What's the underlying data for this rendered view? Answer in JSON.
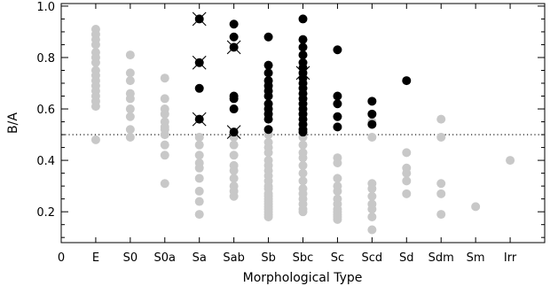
{
  "chart_data": {
    "type": "scatter",
    "title": "",
    "xlabel": "Morphological Type",
    "ylabel": "B/A",
    "categories": [
      "0",
      "E",
      "S0",
      "S0a",
      "Sa",
      "Sab",
      "Sb",
      "Sbc",
      "Sc",
      "Scd",
      "Sd",
      "Sdm",
      "Sm",
      "Irr"
    ],
    "xlim": [
      0,
      14
    ],
    "ylim": [
      0.08,
      1.01
    ],
    "yticks": [
      "0.2",
      "0.4",
      "0.6",
      "0.8",
      "1.0"
    ],
    "ytick_values": [
      0.2,
      0.4,
      0.6,
      0.8,
      1.0
    ],
    "reference_line": {
      "y": 0.5,
      "style": "dotted"
    },
    "colors": {
      "gray": "#c8c8c8",
      "black": "#000000"
    },
    "series": [
      {
        "color": "gray",
        "points": [
          [
            1,
            0.91
          ],
          [
            1,
            0.89
          ],
          [
            1,
            0.87
          ],
          [
            1,
            0.85
          ],
          [
            1,
            0.82
          ],
          [
            1,
            0.8
          ],
          [
            1,
            0.78
          ],
          [
            1,
            0.75
          ],
          [
            1,
            0.73
          ],
          [
            1,
            0.71
          ],
          [
            1,
            0.69
          ],
          [
            1,
            0.67
          ],
          [
            1,
            0.65
          ],
          [
            1,
            0.63
          ],
          [
            1,
            0.61
          ],
          [
            1,
            0.48
          ],
          [
            2,
            0.81
          ],
          [
            2,
            0.74
          ],
          [
            2,
            0.71
          ],
          [
            2,
            0.66
          ],
          [
            2,
            0.64
          ],
          [
            2,
            0.6
          ],
          [
            2,
            0.57
          ],
          [
            2,
            0.52
          ],
          [
            2,
            0.49
          ],
          [
            3,
            0.72
          ],
          [
            3,
            0.64
          ],
          [
            3,
            0.6
          ],
          [
            3,
            0.58
          ],
          [
            3,
            0.55
          ],
          [
            3,
            0.53
          ],
          [
            3,
            0.52
          ],
          [
            3,
            0.5
          ],
          [
            3,
            0.46
          ],
          [
            3,
            0.42
          ],
          [
            3,
            0.31
          ],
          [
            4,
            0.49
          ],
          [
            4,
            0.46
          ],
          [
            4,
            0.42
          ],
          [
            4,
            0.39
          ],
          [
            4,
            0.37
          ],
          [
            4,
            0.33
          ],
          [
            4,
            0.28
          ],
          [
            4,
            0.24
          ],
          [
            4,
            0.19
          ],
          [
            5,
            0.49
          ],
          [
            5,
            0.46
          ],
          [
            5,
            0.42
          ],
          [
            5,
            0.38
          ],
          [
            5,
            0.36
          ],
          [
            5,
            0.33
          ],
          [
            5,
            0.3
          ],
          [
            5,
            0.28
          ],
          [
            5,
            0.26
          ],
          [
            6,
            0.5
          ],
          [
            6,
            0.47
          ],
          [
            6,
            0.45
          ],
          [
            6,
            0.43
          ],
          [
            6,
            0.4
          ],
          [
            6,
            0.38
          ],
          [
            6,
            0.36
          ],
          [
            6,
            0.34
          ],
          [
            6,
            0.32
          ],
          [
            6,
            0.3
          ],
          [
            6,
            0.29
          ],
          [
            6,
            0.27
          ],
          [
            6,
            0.26
          ],
          [
            6,
            0.25
          ],
          [
            6,
            0.24
          ],
          [
            6,
            0.23
          ],
          [
            6,
            0.22
          ],
          [
            6,
            0.21
          ],
          [
            6,
            0.2
          ],
          [
            6,
            0.19
          ],
          [
            6,
            0.18
          ],
          [
            7,
            0.49
          ],
          [
            7,
            0.46
          ],
          [
            7,
            0.43
          ],
          [
            7,
            0.41
          ],
          [
            7,
            0.38
          ],
          [
            7,
            0.35
          ],
          [
            7,
            0.32
          ],
          [
            7,
            0.29
          ],
          [
            7,
            0.27
          ],
          [
            7,
            0.25
          ],
          [
            7,
            0.23
          ],
          [
            7,
            0.21
          ],
          [
            7,
            0.2
          ],
          [
            8,
            0.41
          ],
          [
            8,
            0.39
          ],
          [
            8,
            0.33
          ],
          [
            8,
            0.3
          ],
          [
            8,
            0.28
          ],
          [
            8,
            0.25
          ],
          [
            8,
            0.23
          ],
          [
            8,
            0.21
          ],
          [
            8,
            0.2
          ],
          [
            8,
            0.19
          ],
          [
            8,
            0.18
          ],
          [
            8,
            0.17
          ],
          [
            9,
            0.55
          ],
          [
            9,
            0.49
          ],
          [
            9,
            0.31
          ],
          [
            9,
            0.29
          ],
          [
            9,
            0.26
          ],
          [
            9,
            0.23
          ],
          [
            9,
            0.21
          ],
          [
            9,
            0.18
          ],
          [
            9,
            0.13
          ],
          [
            10,
            0.43
          ],
          [
            10,
            0.37
          ],
          [
            10,
            0.35
          ],
          [
            10,
            0.32
          ],
          [
            10,
            0.27
          ],
          [
            11,
            0.56
          ],
          [
            11,
            0.49
          ],
          [
            11,
            0.31
          ],
          [
            11,
            0.27
          ],
          [
            11,
            0.19
          ],
          [
            12,
            0.22
          ],
          [
            13,
            0.4
          ]
        ]
      },
      {
        "color": "black",
        "points": [
          [
            4,
            0.95
          ],
          [
            4,
            0.78
          ],
          [
            4,
            0.68
          ],
          [
            4,
            0.56
          ],
          [
            5,
            0.93
          ],
          [
            5,
            0.88
          ],
          [
            5,
            0.84
          ],
          [
            5,
            0.65
          ],
          [
            5,
            0.64
          ],
          [
            5,
            0.6
          ],
          [
            5,
            0.51
          ],
          [
            6,
            0.88
          ],
          [
            6,
            0.77
          ],
          [
            6,
            0.74
          ],
          [
            6,
            0.71
          ],
          [
            6,
            0.69
          ],
          [
            6,
            0.67
          ],
          [
            6,
            0.65
          ],
          [
            6,
            0.62
          ],
          [
            6,
            0.6
          ],
          [
            6,
            0.58
          ],
          [
            6,
            0.56
          ],
          [
            6,
            0.52
          ],
          [
            7,
            0.95
          ],
          [
            7,
            0.87
          ],
          [
            7,
            0.84
          ],
          [
            7,
            0.81
          ],
          [
            7,
            0.78
          ],
          [
            7,
            0.76
          ],
          [
            7,
            0.74
          ],
          [
            7,
            0.72
          ],
          [
            7,
            0.7
          ],
          [
            7,
            0.68
          ],
          [
            7,
            0.66
          ],
          [
            7,
            0.64
          ],
          [
            7,
            0.62
          ],
          [
            7,
            0.6
          ],
          [
            7,
            0.58
          ],
          [
            7,
            0.56
          ],
          [
            7,
            0.54
          ],
          [
            7,
            0.52
          ],
          [
            7,
            0.51
          ],
          [
            8,
            0.83
          ],
          [
            8,
            0.65
          ],
          [
            8,
            0.62
          ],
          [
            8,
            0.57
          ],
          [
            8,
            0.53
          ],
          [
            9,
            0.63
          ],
          [
            9,
            0.58
          ],
          [
            9,
            0.54
          ],
          [
            10,
            0.71
          ]
        ]
      },
      {
        "color": "black",
        "marker": "x",
        "points": [
          [
            4,
            0.95
          ],
          [
            4,
            0.78
          ],
          [
            4,
            0.56
          ],
          [
            5,
            0.84
          ],
          [
            5,
            0.51
          ],
          [
            7,
            0.74
          ]
        ]
      }
    ]
  }
}
